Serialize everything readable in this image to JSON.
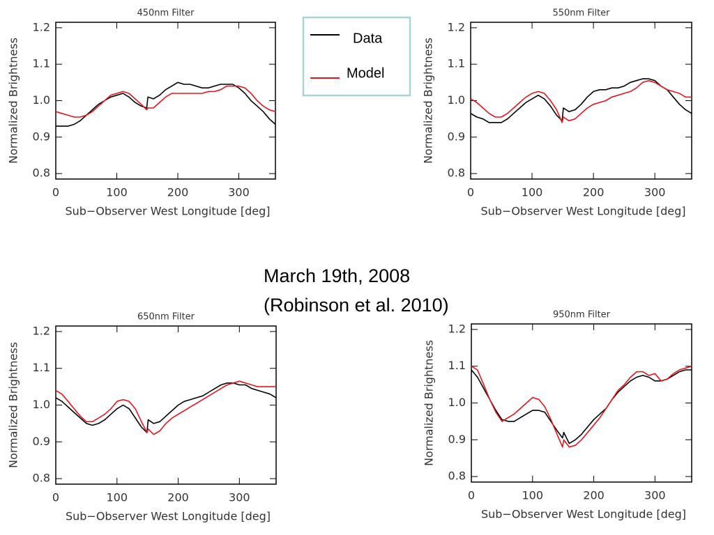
{
  "chart_data": [
    {
      "type": "line",
      "title": "450nm Filter",
      "xlabel": "Sub−Observer West Longitude [deg]",
      "ylabel": "Normalized Brightness",
      "x": [
        0,
        10,
        20,
        30,
        40,
        50,
        60,
        70,
        80,
        90,
        100,
        110,
        120,
        130,
        140,
        149,
        151,
        160,
        170,
        180,
        190,
        200,
        210,
        220,
        230,
        240,
        250,
        260,
        270,
        280,
        290,
        300,
        310,
        320,
        330,
        340,
        350,
        360
      ],
      "xlim": [
        0,
        360
      ],
      "xticks": [
        0,
        100,
        200,
        300
      ],
      "ylim": [
        0.785,
        1.215
      ],
      "yticks": [
        0.8,
        0.9,
        {
          "value": 1,
          "label": "1.0"
        },
        1.1,
        1.2
      ],
      "series": [
        {
          "name": "Data",
          "color": "#000000",
          "values": [
            0.93,
            0.93,
            0.93,
            0.935,
            0.945,
            0.96,
            0.975,
            0.99,
            1.0,
            1.01,
            1.015,
            1.02,
            1.01,
            0.995,
            0.985,
            0.98,
            1.01,
            1.005,
            1.015,
            1.03,
            1.04,
            1.05,
            1.045,
            1.045,
            1.04,
            1.035,
            1.035,
            1.04,
            1.045,
            1.045,
            1.045,
            1.035,
            1.02,
            1.0,
            0.985,
            0.97,
            0.95,
            0.935
          ]
        },
        {
          "name": "Model",
          "color": "#e8141b",
          "values": [
            0.97,
            0.965,
            0.96,
            0.955,
            0.955,
            0.96,
            0.97,
            0.985,
            1.0,
            1.015,
            1.02,
            1.025,
            1.02,
            1.005,
            0.99,
            0.975,
            0.98,
            0.98,
            0.995,
            1.01,
            1.02,
            1.02,
            1.02,
            1.02,
            1.02,
            1.02,
            1.025,
            1.025,
            1.03,
            1.04,
            1.04,
            1.04,
            1.035,
            1.02,
            1.0,
            0.985,
            0.975,
            0.97
          ]
        }
      ]
    },
    {
      "type": "line",
      "title": "550nm Filter",
      "xlabel": "Sub−Observer West Longitude [deg]",
      "ylabel": "Normalized Brightness",
      "x": [
        0,
        10,
        20,
        30,
        40,
        50,
        60,
        70,
        80,
        90,
        100,
        110,
        120,
        130,
        140,
        149,
        151,
        160,
        170,
        180,
        190,
        200,
        210,
        220,
        230,
        240,
        250,
        260,
        270,
        280,
        290,
        300,
        310,
        320,
        330,
        340,
        350,
        360
      ],
      "xlim": [
        0,
        360
      ],
      "xticks": [
        0,
        100,
        200,
        300
      ],
      "ylim": [
        0.785,
        1.215
      ],
      "yticks": [
        0.8,
        0.9,
        {
          "value": 1,
          "label": "1.0"
        },
        1.1,
        1.2
      ],
      "series": [
        {
          "color": "#000000",
          "values": [
            0.965,
            0.955,
            0.95,
            0.94,
            0.94,
            0.94,
            0.95,
            0.965,
            0.98,
            0.995,
            1.005,
            1.015,
            1.005,
            0.985,
            0.96,
            0.945,
            0.98,
            0.97,
            0.975,
            0.99,
            1.01,
            1.025,
            1.03,
            1.03,
            1.035,
            1.035,
            1.04,
            1.05,
            1.055,
            1.06,
            1.06,
            1.055,
            1.04,
            1.03,
            1.01,
            0.99,
            0.975,
            0.965
          ]
        },
        {
          "color": "#e8141b",
          "values": [
            1.005,
            0.995,
            0.98,
            0.965,
            0.955,
            0.955,
            0.965,
            0.98,
            0.995,
            1.01,
            1.02,
            1.025,
            1.02,
            1.0,
            0.975,
            0.94,
            0.955,
            0.945,
            0.95,
            0.965,
            0.98,
            0.99,
            0.995,
            1.0,
            1.01,
            1.015,
            1.02,
            1.025,
            1.035,
            1.05,
            1.055,
            1.05,
            1.04,
            1.03,
            1.025,
            1.02,
            1.01,
            1.01
          ]
        }
      ]
    },
    {
      "type": "line",
      "title": "650nm Filter",
      "xlabel": "Sub−Observer West Longitude [deg]",
      "ylabel": "Normalized Brightness",
      "x": [
        0,
        10,
        20,
        30,
        40,
        50,
        60,
        70,
        80,
        90,
        100,
        110,
        120,
        130,
        140,
        149,
        151,
        160,
        170,
        180,
        190,
        200,
        210,
        220,
        230,
        240,
        250,
        260,
        270,
        280,
        290,
        300,
        310,
        320,
        330,
        340,
        350,
        360
      ],
      "xlim": [
        0,
        360
      ],
      "xticks": [
        0,
        100,
        200,
        300
      ],
      "ylim": [
        0.785,
        1.215
      ],
      "yticks": [
        0.8,
        0.9,
        {
          "value": 1,
          "label": "1.0"
        },
        1.1,
        1.2
      ],
      "series": [
        {
          "color": "#000000",
          "values": [
            1.02,
            1.01,
            0.995,
            0.98,
            0.965,
            0.95,
            0.945,
            0.95,
            0.96,
            0.975,
            0.99,
            1.0,
            0.99,
            0.965,
            0.94,
            0.925,
            0.96,
            0.95,
            0.955,
            0.97,
            0.985,
            1.0,
            1.01,
            1.015,
            1.02,
            1.025,
            1.035,
            1.045,
            1.055,
            1.06,
            1.06,
            1.055,
            1.055,
            1.045,
            1.04,
            1.035,
            1.03,
            1.02
          ]
        },
        {
          "color": "#e8141b",
          "values": [
            1.04,
            1.03,
            1.01,
            0.99,
            0.97,
            0.955,
            0.955,
            0.965,
            0.975,
            0.99,
            1.01,
            1.015,
            1.01,
            0.99,
            0.955,
            0.925,
            0.935,
            0.92,
            0.93,
            0.95,
            0.965,
            0.975,
            0.985,
            0.995,
            1.005,
            1.015,
            1.025,
            1.035,
            1.045,
            1.055,
            1.06,
            1.065,
            1.06,
            1.055,
            1.05,
            1.05,
            1.05,
            1.05
          ]
        }
      ]
    },
    {
      "type": "line",
      "title": "950nm Filter",
      "xlabel": "Sub−Observer West Longitude [deg]",
      "ylabel": "Normalized Brightness",
      "x": [
        0,
        10,
        20,
        30,
        40,
        50,
        60,
        70,
        80,
        90,
        100,
        110,
        120,
        130,
        140,
        149,
        151,
        160,
        170,
        180,
        190,
        200,
        210,
        220,
        230,
        240,
        250,
        260,
        270,
        280,
        290,
        300,
        310,
        320,
        330,
        340,
        350,
        360
      ],
      "xlim": [
        0,
        360
      ],
      "xticks": [
        0,
        100,
        200,
        300
      ],
      "ylim": [
        0.785,
        1.215
      ],
      "yticks": [
        0.8,
        0.9,
        {
          "value": 1,
          "label": "1.0"
        },
        1.1,
        1.2
      ],
      "series": [
        {
          "color": "#000000",
          "values": [
            1.09,
            1.07,
            1.04,
            1.01,
            0.98,
            0.955,
            0.95,
            0.95,
            0.96,
            0.97,
            0.98,
            0.98,
            0.975,
            0.95,
            0.925,
            0.905,
            0.92,
            0.89,
            0.9,
            0.915,
            0.935,
            0.955,
            0.97,
            0.985,
            1.01,
            1.03,
            1.045,
            1.06,
            1.07,
            1.075,
            1.07,
            1.06,
            1.06,
            1.065,
            1.075,
            1.085,
            1.09,
            1.09
          ]
        },
        {
          "color": "#e8141b",
          "values": [
            1.1,
            1.09,
            1.05,
            1.01,
            0.975,
            0.95,
            0.96,
            0.97,
            0.985,
            1.0,
            1.015,
            1.01,
            0.99,
            0.955,
            0.915,
            0.88,
            0.9,
            0.88,
            0.885,
            0.9,
            0.92,
            0.94,
            0.96,
            0.985,
            1.01,
            1.035,
            1.05,
            1.07,
            1.085,
            1.085,
            1.075,
            1.08,
            1.06,
            1.065,
            1.08,
            1.09,
            1.095,
            1.1
          ]
        }
      ]
    }
  ],
  "caption": [
    "March 19th, 2008",
    "(Robinson et al. 2010)"
  ]
}
